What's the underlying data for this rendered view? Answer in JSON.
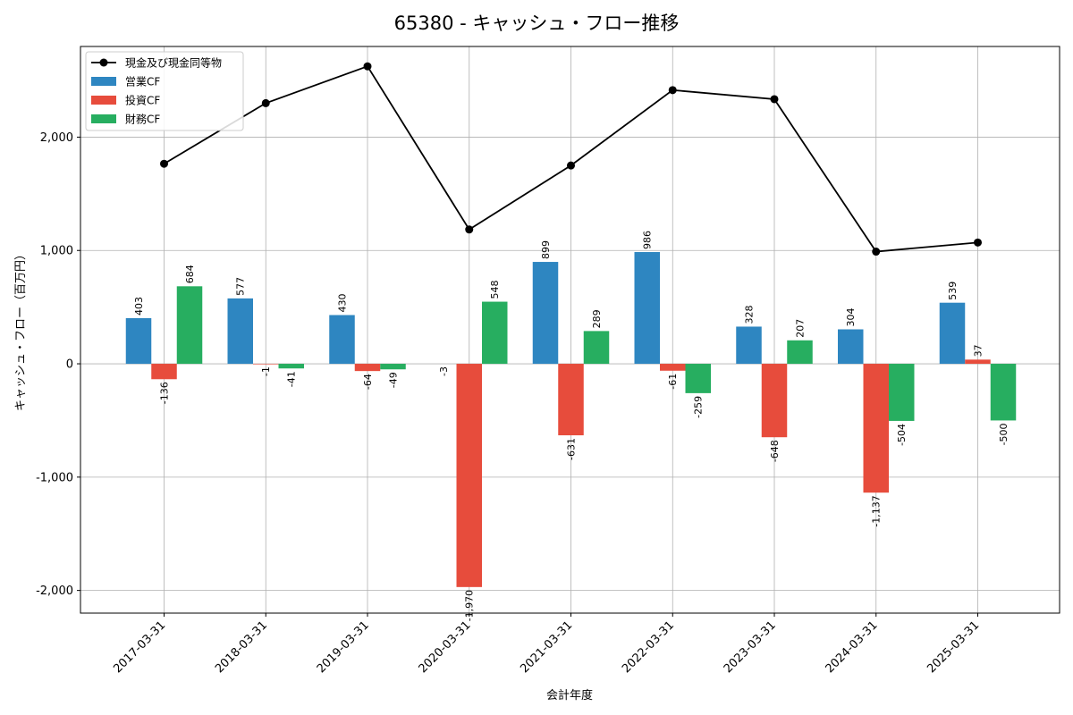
{
  "chart_data": {
    "type": "bar",
    "title": "65380 - キャッシュ・フロー推移",
    "xlabel": "会計年度",
    "ylabel": "キャッシュ・フロー（百万円）",
    "ylim": [
      -2200,
      2800
    ],
    "yticks": [
      -2000,
      -1000,
      0,
      1000,
      2000
    ],
    "ytick_labels": [
      "-2,000",
      "-1,000",
      "0",
      "1,000",
      "2,000"
    ],
    "grid": true,
    "legend_position": "top-left",
    "categories": [
      "2017-03-31",
      "2018-03-31",
      "2019-03-31",
      "2020-03-31",
      "2021-03-31",
      "2022-03-31",
      "2023-03-31",
      "2024-03-31",
      "2025-03-31"
    ],
    "series": [
      {
        "name": "営業CF",
        "kind": "bar",
        "color": "#2e86c1",
        "values": [
          403,
          577,
          430,
          null,
          899,
          986,
          328,
          304,
          539
        ],
        "labels": [
          "403",
          "577",
          "430",
          "",
          "899",
          "986",
          "328",
          "304",
          "539"
        ]
      },
      {
        "name": "投資CF",
        "kind": "bar",
        "color": "#e74c3c",
        "values": [
          -136,
          -1,
          -64,
          -1970,
          -631,
          -61,
          -648,
          -1137,
          37
        ],
        "labels": [
          "-136",
          "-1",
          "-64",
          "-1,970",
          "-631",
          "-61",
          "-648",
          "-1,137",
          "37"
        ]
      },
      {
        "name": "財務CF",
        "kind": "bar",
        "color": "#27ae60",
        "values": [
          684,
          -41,
          -49,
          548,
          289,
          -259,
          207,
          -504,
          -500
        ],
        "labels": [
          "684",
          "-41",
          "-49",
          "548",
          "289",
          "-259",
          "207",
          "-504",
          "-500"
        ]
      },
      {
        "name": "現金及び現金同等物",
        "kind": "line",
        "color": "#000000",
        "values": [
          1765,
          2300,
          2625,
          1185,
          1750,
          2415,
          2335,
          990,
          1070
        ]
      }
    ],
    "extra_labels": [
      {
        "category_index": 3,
        "text": "-3"
      }
    ],
    "legend_order": [
      "現金及び現金同等物",
      "営業CF",
      "投資CF",
      "財務CF"
    ]
  }
}
